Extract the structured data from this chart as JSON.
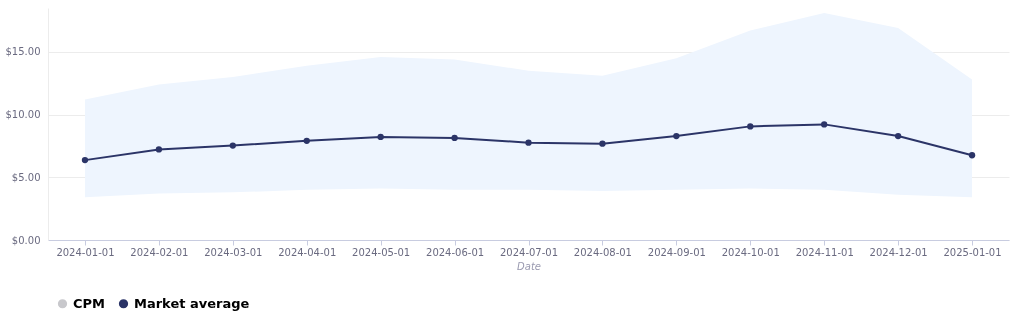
{
  "chart_data": {
    "type": "line",
    "xlabel": "Date",
    "categories": [
      "2024-01-01",
      "2024-02-01",
      "2024-03-01",
      "2024-04-01",
      "2024-05-01",
      "2024-06-01",
      "2024-07-01",
      "2024-08-01",
      "2024-09-01",
      "2024-10-01",
      "2024-11-01",
      "2024-12-01",
      "2025-01-01"
    ],
    "series": [
      {
        "name": "CPM",
        "color": "#c8c8cc",
        "values": [
          null,
          null,
          null,
          null,
          null,
          null,
          null,
          null,
          null,
          null,
          null,
          null,
          null
        ]
      },
      {
        "name": "Market average",
        "color": "#2b3467",
        "values": [
          6.37,
          7.22,
          7.53,
          7.91,
          8.22,
          8.14,
          7.76,
          7.68,
          8.29,
          9.06,
          9.22,
          8.29,
          6.76
        ],
        "lower": [
          3.4,
          3.7,
          3.8,
          4.0,
          4.1,
          4.0,
          4.0,
          3.9,
          4.0,
          4.1,
          4.0,
          3.6,
          3.4
        ],
        "upper": [
          11.2,
          12.4,
          13.0,
          13.9,
          14.6,
          14.4,
          13.5,
          13.1,
          14.5,
          16.7,
          18.1,
          16.9,
          12.8
        ]
      }
    ],
    "ylim": [
      0,
      18.5
    ],
    "yticks": [
      {
        "value": 0,
        "label": "$0.00"
      },
      {
        "value": 5,
        "label": "$5.00"
      },
      {
        "value": 10,
        "label": "$10.00"
      },
      {
        "value": 15,
        "label": "$15.00"
      }
    ],
    "grid": "y",
    "legend": "bottom",
    "marker": "circle",
    "line_style": "solid"
  }
}
